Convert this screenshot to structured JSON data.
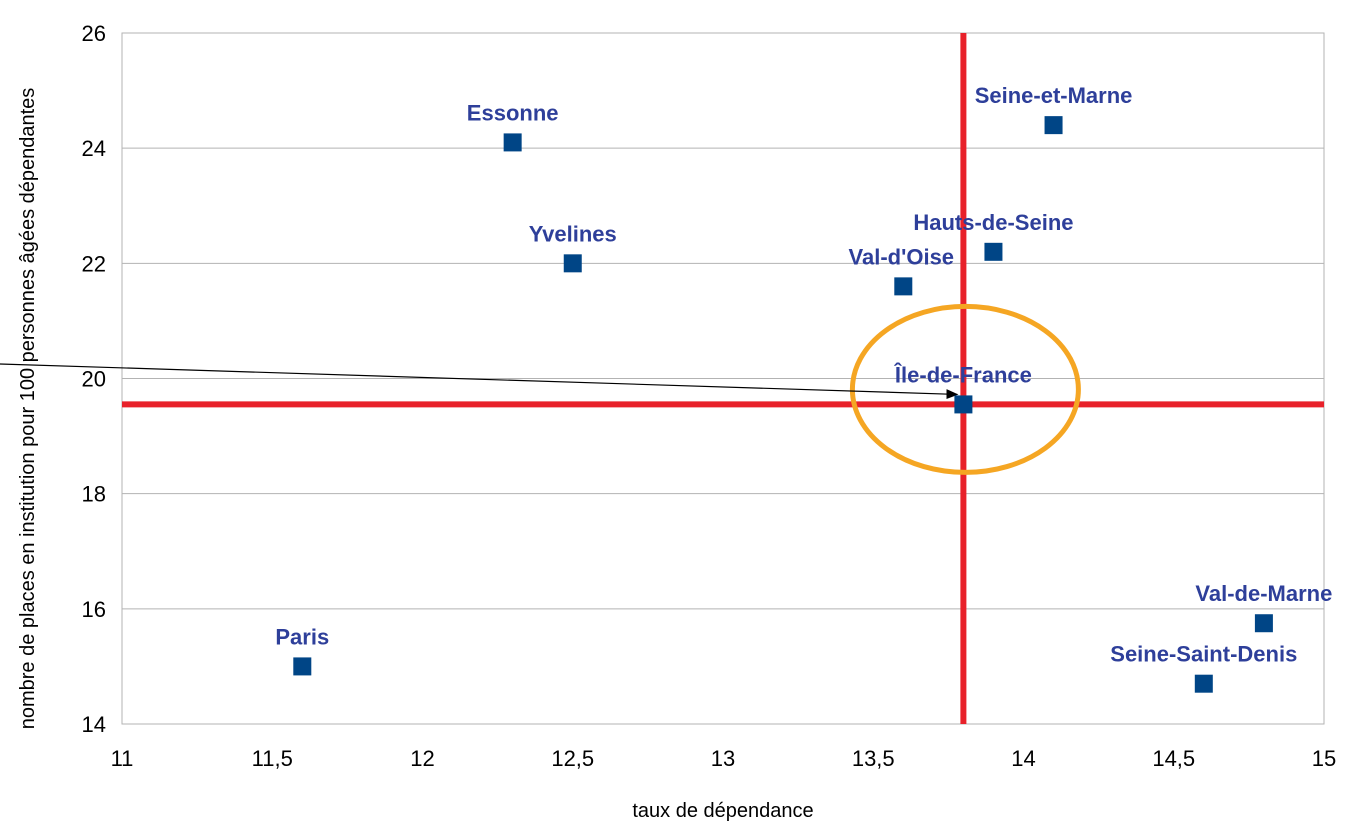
{
  "chart_data": {
    "type": "scatter",
    "title": "",
    "xlabel": "taux de dépendance",
    "ylabel": "nombre de places en institution pour 100 personnes âgées dépendantes",
    "xlim": [
      11,
      15
    ],
    "ylim": [
      14,
      26
    ],
    "x_ticks": [
      "11",
      "11,5",
      "12",
      "12,5",
      "13",
      "13,5",
      "14",
      "14,5",
      "15"
    ],
    "y_ticks": [
      "14",
      "16",
      "18",
      "20",
      "22",
      "24",
      "26"
    ],
    "grid": true,
    "legend": "none",
    "marker_color": "#004586",
    "label_color": "#2e3f9a",
    "reference_line_color": "#e8212a",
    "highlight_color": "#f5a623",
    "reference_lines": {
      "x": 13.8,
      "y": 19.55
    },
    "highlight": "Île-de-France",
    "points": [
      {
        "name": "Paris",
        "x": 11.6,
        "y": 15.0
      },
      {
        "name": "Essonne",
        "x": 12.3,
        "y": 24.1
      },
      {
        "name": "Yvelines",
        "x": 12.5,
        "y": 22.0
      },
      {
        "name": "Val-d'Oise",
        "x": 13.6,
        "y": 21.6
      },
      {
        "name": "Île-de-France",
        "x": 13.8,
        "y": 19.55
      },
      {
        "name": "Hauts-de-Seine",
        "x": 13.9,
        "y": 22.2
      },
      {
        "name": "Seine-et-Marne",
        "x": 14.1,
        "y": 24.4
      },
      {
        "name": "Seine-Saint-Denis",
        "x": 14.6,
        "y": 14.7
      },
      {
        "name": "Val-de-Marne",
        "x": 14.8,
        "y": 15.75
      }
    ]
  }
}
